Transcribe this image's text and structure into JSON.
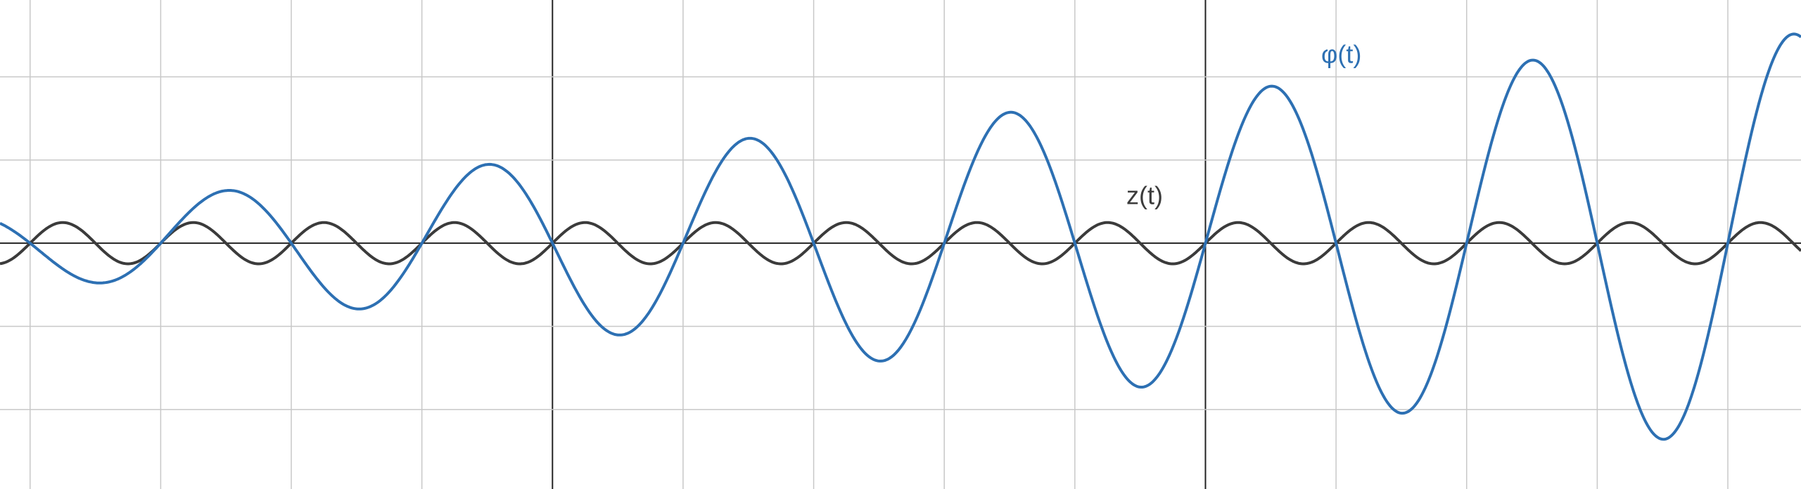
{
  "labels": {
    "phi": "φ(t)",
    "z": "z(t)"
  }
}
